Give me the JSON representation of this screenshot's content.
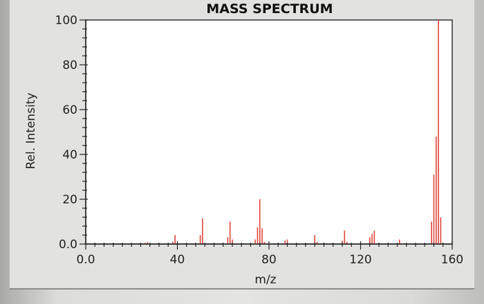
{
  "chart_data": {
    "type": "bar",
    "title": "MASS SPECTRUM",
    "xlabel": "m/z",
    "ylabel": "Rel. Intensity",
    "xlim": [
      0,
      160
    ],
    "ylim": [
      0,
      100
    ],
    "x_ticks": [
      "0.0",
      "40",
      "80",
      "120",
      "160"
    ],
    "y_ticks": [
      "0.0",
      "20",
      "40",
      "60",
      "80",
      "100"
    ],
    "grid": false,
    "bar_color": "#e0443a",
    "peaks": [
      {
        "x": 26,
        "y": 0.5
      },
      {
        "x": 27,
        "y": 0.8
      },
      {
        "x": 38,
        "y": 1.0
      },
      {
        "x": 39,
        "y": 4.0
      },
      {
        "x": 50,
        "y": 4.0
      },
      {
        "x": 51,
        "y": 11.5
      },
      {
        "x": 62,
        "y": 3.0
      },
      {
        "x": 63,
        "y": 10.0
      },
      {
        "x": 64,
        "y": 2.0
      },
      {
        "x": 74,
        "y": 2.0
      },
      {
        "x": 75,
        "y": 7.5
      },
      {
        "x": 76,
        "y": 20.0
      },
      {
        "x": 77,
        "y": 7.0
      },
      {
        "x": 78,
        "y": 1.0
      },
      {
        "x": 87,
        "y": 1.5
      },
      {
        "x": 88,
        "y": 2.0
      },
      {
        "x": 100,
        "y": 4.0
      },
      {
        "x": 101,
        "y": 1.0
      },
      {
        "x": 112,
        "y": 1.5
      },
      {
        "x": 113,
        "y": 6.0
      },
      {
        "x": 114,
        "y": 1.0
      },
      {
        "x": 124,
        "y": 3.0
      },
      {
        "x": 125,
        "y": 4.5
      },
      {
        "x": 126,
        "y": 6.0
      },
      {
        "x": 137,
        "y": 2.0
      },
      {
        "x": 151,
        "y": 10.0
      },
      {
        "x": 152,
        "y": 31.0
      },
      {
        "x": 153,
        "y": 48.0
      },
      {
        "x": 154,
        "y": 100.0
      },
      {
        "x": 155,
        "y": 12.0
      }
    ]
  }
}
